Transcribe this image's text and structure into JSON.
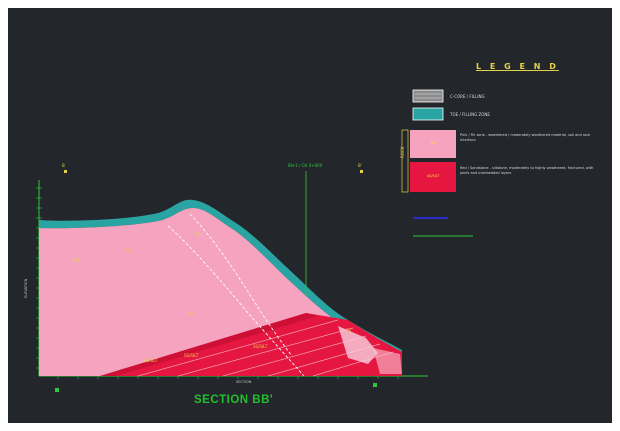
{
  "drawing": {
    "section_title": "SECTION BB'",
    "legend_title": "L E G E N D",
    "legend_items": [
      {
        "swatch_text": "",
        "label": "C-CORE / FILLING",
        "color": "#8c8c8c"
      },
      {
        "swatch_text": "",
        "label": "TOE / FILLING ZONE",
        "color": "#2aa3a3"
      },
      {
        "swatch_text": "RS",
        "label": "Pink / Fill zone - weathered / moderately weathered material, soil and rock interface",
        "color": "#f5a3bf"
      },
      {
        "swatch_text": "SS/SILT",
        "label": "Red / Sandstone - siltstone, moderately to highly weathered, fractured, with joints and interbedded layers",
        "color": "#e5163f"
      }
    ],
    "legend_vertical_label": "ROCK",
    "green_lines": [
      "",
      ""
    ],
    "borehole_label": "BH-1 / CH 0+000",
    "axis_bottom_label": "SECTION",
    "axis_left_label": "ELEVATION",
    "point_labels": [
      "B",
      "B'"
    ],
    "region_labels": [
      "RS",
      "RS",
      "RS",
      "SS/SILT",
      "SS/SILT",
      "SS/SILT",
      "SS",
      "BH"
    ]
  }
}
